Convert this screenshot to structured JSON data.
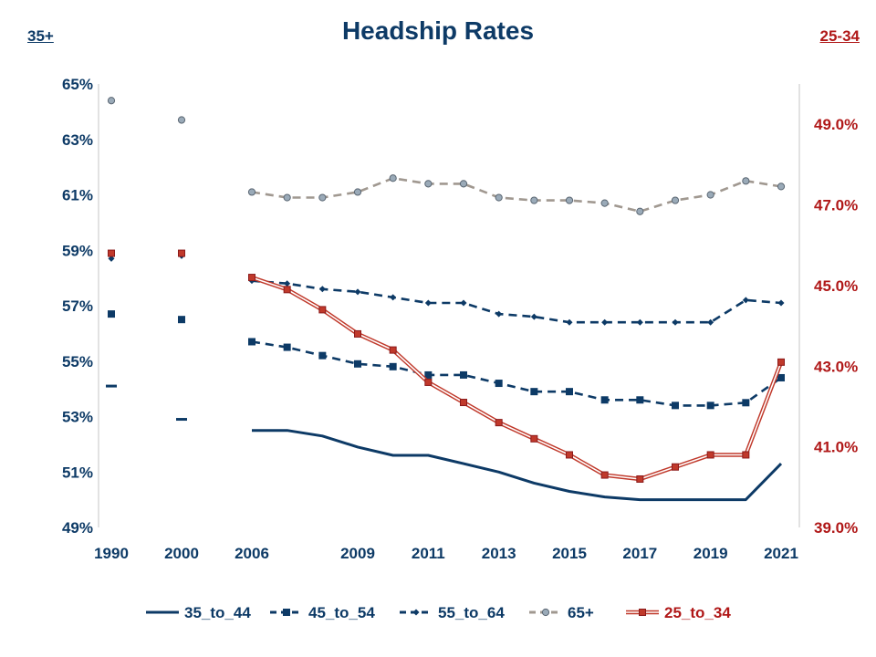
{
  "chart_data": {
    "type": "line",
    "title": "Headship Rates",
    "left_axis": {
      "label": "35+",
      "ylim": [
        49,
        65
      ],
      "ticks": [
        "65%",
        "63%",
        "61%",
        "59%",
        "57%",
        "55%",
        "53%",
        "51%",
        "49%"
      ],
      "tick_values": [
        65,
        63,
        61,
        59,
        57,
        55,
        53,
        51,
        49
      ]
    },
    "right_axis": {
      "label": "25-34",
      "ylim": [
        39,
        50
      ],
      "ticks": [
        "49.0%",
        "47.0%",
        "45.0%",
        "43.0%",
        "41.0%",
        "39.0%"
      ],
      "tick_values": [
        49,
        47,
        45,
        43,
        41,
        39
      ]
    },
    "x_ticks": [
      "1990",
      "2000",
      "2006",
      "2009",
      "2011",
      "2013",
      "2015",
      "2017",
      "2019",
      "2021"
    ],
    "x_tick_values": [
      1990,
      2000,
      2006,
      2009,
      2011,
      2013,
      2015,
      2017,
      2019,
      2021
    ],
    "grid": false,
    "legend_position": "bottom",
    "series": [
      {
        "name": "35_to_44",
        "axis": "left",
        "color": "#0d3a66",
        "style": "solid",
        "marker": "dash",
        "points": [
          [
            1990,
            54.1
          ],
          [
            2000,
            52.9
          ],
          [
            2006,
            52.5
          ],
          [
            2007,
            52.5
          ],
          [
            2008,
            52.3
          ],
          [
            2009,
            51.9
          ],
          [
            2010,
            51.6
          ],
          [
            2011,
            51.6
          ],
          [
            2012,
            51.3
          ],
          [
            2013,
            51.0
          ],
          [
            2014,
            50.6
          ],
          [
            2015,
            50.3
          ],
          [
            2016,
            50.1
          ],
          [
            2017,
            50.0
          ],
          [
            2018,
            50.0
          ],
          [
            2019,
            50.0
          ],
          [
            2020,
            50.0
          ],
          [
            2021,
            51.3
          ]
        ]
      },
      {
        "name": "45_to_54",
        "axis": "left",
        "color": "#0d3a66",
        "style": "dashed",
        "marker": "square",
        "points": [
          [
            1990,
            56.7
          ],
          [
            2000,
            56.5
          ],
          [
            2006,
            55.7
          ],
          [
            2007,
            55.5
          ],
          [
            2008,
            55.2
          ],
          [
            2009,
            54.9
          ],
          [
            2010,
            54.8
          ],
          [
            2011,
            54.5
          ],
          [
            2012,
            54.5
          ],
          [
            2013,
            54.2
          ],
          [
            2014,
            53.9
          ],
          [
            2015,
            53.9
          ],
          [
            2016,
            53.6
          ],
          [
            2017,
            53.6
          ],
          [
            2018,
            53.4
          ],
          [
            2019,
            53.4
          ],
          [
            2020,
            53.5
          ],
          [
            2021,
            54.4
          ]
        ]
      },
      {
        "name": "55_to_64",
        "axis": "left",
        "color": "#0d3a66",
        "style": "dashed",
        "marker": "diamond",
        "points": [
          [
            1990,
            58.7
          ],
          [
            2000,
            58.8
          ],
          [
            2006,
            57.9
          ],
          [
            2007,
            57.8
          ],
          [
            2008,
            57.6
          ],
          [
            2009,
            57.5
          ],
          [
            2010,
            57.3
          ],
          [
            2011,
            57.1
          ],
          [
            2012,
            57.1
          ],
          [
            2013,
            56.7
          ],
          [
            2014,
            56.6
          ],
          [
            2015,
            56.4
          ],
          [
            2016,
            56.4
          ],
          [
            2017,
            56.4
          ],
          [
            2018,
            56.4
          ],
          [
            2019,
            56.4
          ],
          [
            2020,
            57.2
          ],
          [
            2021,
            57.1
          ]
        ]
      },
      {
        "name": "65+",
        "axis": "left",
        "color": "#a09890",
        "style": "dashed",
        "marker": "circle",
        "points": [
          [
            1990,
            64.4
          ],
          [
            2000,
            63.7
          ],
          [
            2006,
            61.1
          ],
          [
            2007,
            60.9
          ],
          [
            2008,
            60.9
          ],
          [
            2009,
            61.1
          ],
          [
            2010,
            61.6
          ],
          [
            2011,
            61.4
          ],
          [
            2012,
            61.4
          ],
          [
            2013,
            60.9
          ],
          [
            2014,
            60.8
          ],
          [
            2015,
            60.8
          ],
          [
            2016,
            60.7
          ],
          [
            2017,
            60.4
          ],
          [
            2018,
            60.8
          ],
          [
            2019,
            61.0
          ],
          [
            2020,
            61.5
          ],
          [
            2021,
            61.3
          ]
        ]
      },
      {
        "name": "25_to_34",
        "axis": "right",
        "color": "#c0392b",
        "style": "double",
        "marker": "square",
        "points": [
          [
            1990,
            45.8
          ],
          [
            2000,
            45.8
          ],
          [
            2006,
            45.2
          ],
          [
            2007,
            44.9
          ],
          [
            2008,
            44.4
          ],
          [
            2009,
            43.8
          ],
          [
            2010,
            43.4
          ],
          [
            2011,
            42.6
          ],
          [
            2012,
            42.1
          ],
          [
            2013,
            41.6
          ],
          [
            2014,
            41.2
          ],
          [
            2015,
            40.8
          ],
          [
            2016,
            40.3
          ],
          [
            2017,
            40.2
          ],
          [
            2018,
            40.5
          ],
          [
            2019,
            40.8
          ],
          [
            2020,
            40.8
          ],
          [
            2021,
            43.1
          ]
        ]
      }
    ]
  }
}
